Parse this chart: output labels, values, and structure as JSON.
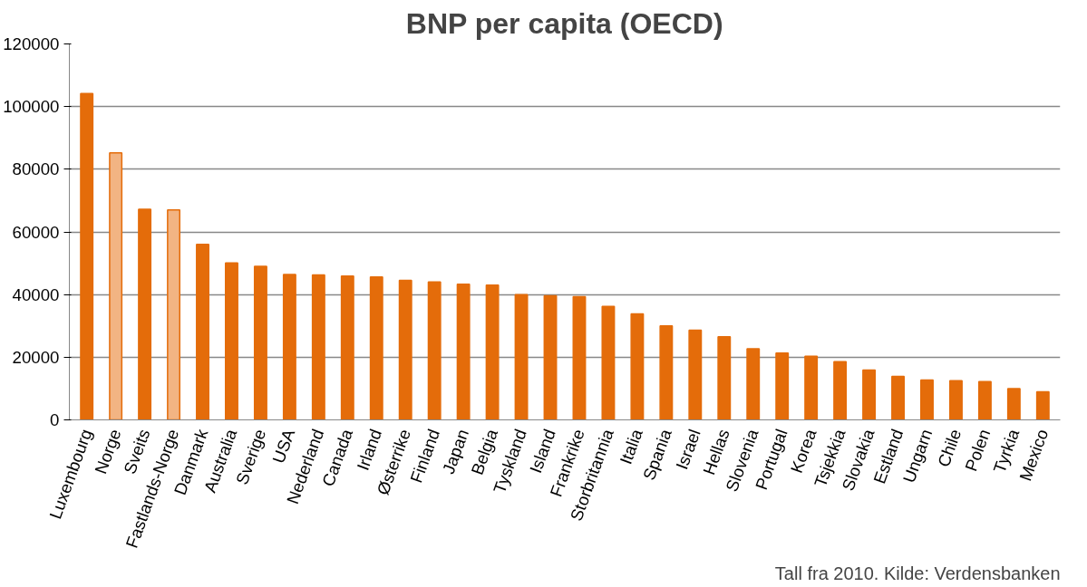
{
  "chart_data": {
    "type": "bar",
    "title": "BNP per capita (OECD)",
    "categories": [
      "Luxembourg",
      "Norge",
      "Sveits",
      "Fastlands-Norge",
      "Danmark",
      "Australia",
      "Sverige",
      "USA",
      "Nederland",
      "Canada",
      "Irland",
      "Østerrike",
      "Finland",
      "Japan",
      "Belgia",
      "Tyskland",
      "Island",
      "Frankrike",
      "Storbritannia",
      "Italia",
      "Spania",
      "Israel",
      "Hellas",
      "Slovenia",
      "Portugal",
      "Korea",
      "Tsjekkia",
      "Slovakia",
      "Estland",
      "Ungarn",
      "Chile",
      "Polen",
      "Tyrkia",
      "Mexico"
    ],
    "values": [
      104200,
      85200,
      67200,
      67000,
      56000,
      50100,
      49000,
      46400,
      46300,
      45900,
      45600,
      44500,
      44000,
      43300,
      43000,
      40000,
      39600,
      39300,
      36200,
      33800,
      30000,
      28600,
      26500,
      22700,
      21300,
      20300,
      18600,
      15900,
      13900,
      12700,
      12500,
      12200,
      10000,
      9000
    ],
    "colors": [
      "#e46c0a",
      "#f2b483",
      "#e46c0a",
      "#f2b483",
      "#e46c0a",
      "#e46c0a",
      "#e46c0a",
      "#e46c0a",
      "#e46c0a",
      "#e46c0a",
      "#e46c0a",
      "#e46c0a",
      "#e46c0a",
      "#e46c0a",
      "#e46c0a",
      "#e46c0a",
      "#e46c0a",
      "#e46c0a",
      "#e46c0a",
      "#e46c0a",
      "#e46c0a",
      "#e46c0a",
      "#e46c0a",
      "#e46c0a",
      "#e46c0a",
      "#e46c0a",
      "#e46c0a",
      "#e46c0a",
      "#e46c0a",
      "#e46c0a",
      "#e46c0a",
      "#e46c0a",
      "#e46c0a",
      "#e46c0a"
    ],
    "ylim": [
      0,
      120000
    ],
    "yticks": [
      0,
      20000,
      40000,
      60000,
      80000,
      100000,
      120000
    ],
    "grid": "y",
    "annotations": [
      "Tall fra 2010. Kilde: Verdensbanken"
    ]
  }
}
